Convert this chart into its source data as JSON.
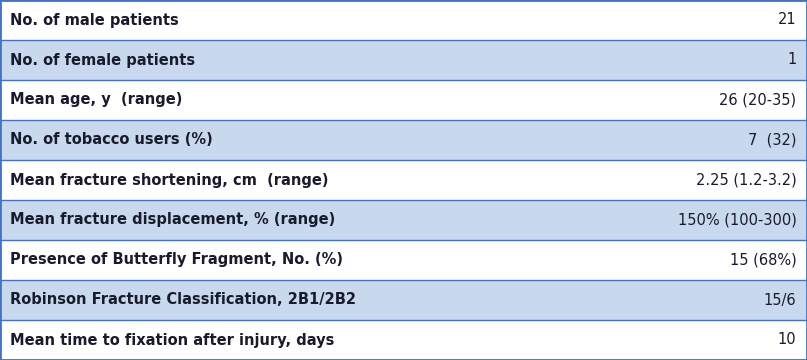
{
  "rows": [
    {
      "label": "No. of male patients",
      "value": "21",
      "bg": "#ffffff"
    },
    {
      "label": "No. of female patients",
      "value": "1",
      "bg": "#c9d9ed"
    },
    {
      "label": "Mean age, y  (range)",
      "value": "26 (20-35)",
      "bg": "#ffffff"
    },
    {
      "label": "No. of tobacco users (%)",
      "value": "7  (32)",
      "bg": "#c9d9ed"
    },
    {
      "label": "Mean fracture shortening, cm  (range)",
      "value": "2.25 (1.2-3.2)",
      "bg": "#ffffff"
    },
    {
      "label": "Mean fracture displacement, % (range)",
      "value": "150% (100-300)",
      "bg": "#c9d9ed"
    },
    {
      "label": "Presence of Butterfly Fragment, No. (%)",
      "value": "15 (68%)",
      "bg": "#ffffff"
    },
    {
      "label": "Robinson Fracture Classification, 2B1/2B2",
      "value": "15/6",
      "bg": "#c9d9ed"
    },
    {
      "label": "Mean time to fixation after injury, days",
      "value": "10",
      "bg": "#ffffff"
    }
  ],
  "border_color": "#4472c4",
  "text_color": "#1a1a2e",
  "label_fontsize": 10.5,
  "value_fontsize": 10.5,
  "figsize": [
    8.07,
    3.6
  ],
  "dpi": 100
}
